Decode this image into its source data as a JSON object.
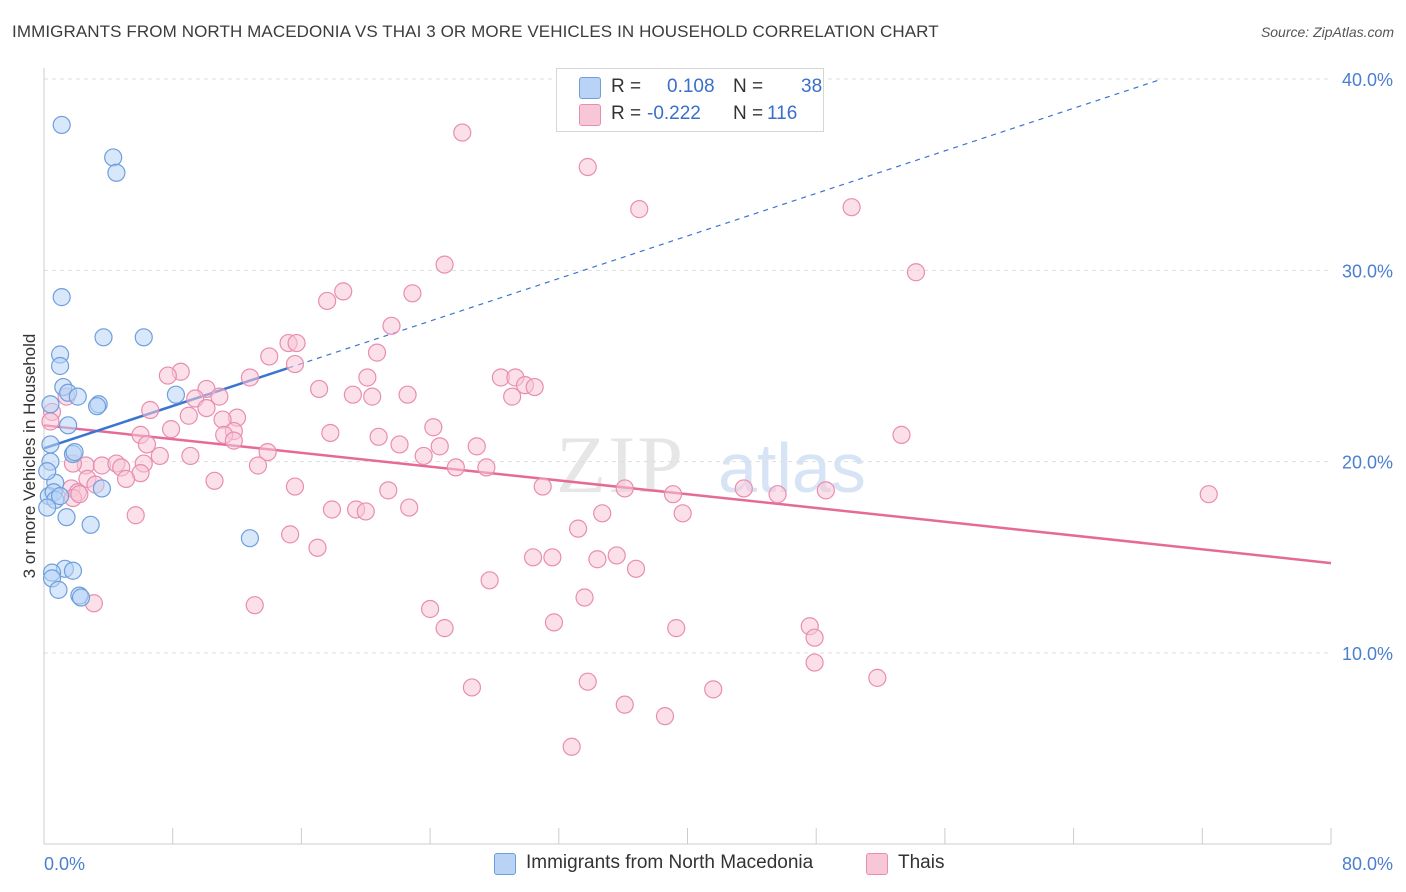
{
  "header": {
    "title": "IMMIGRANTS FROM NORTH MACEDONIA VS THAI 3 OR MORE VEHICLES IN HOUSEHOLD CORRELATION CHART",
    "source": "Source: ZipAtlas.com"
  },
  "legend": {
    "series1": {
      "r_label": "R =",
      "r_value": "0.108",
      "n_label": "N =",
      "n_value": "38"
    },
    "series2": {
      "r_label": "R =",
      "r_value": "-0.222",
      "n_label": "N =",
      "n_value": "116"
    }
  },
  "watermark": {
    "zip": "ZIP",
    "atlas": "atlas"
  },
  "colors": {
    "blue_fill": "#b8d3f5",
    "blue_stroke": "#6e9fdc",
    "blue_line": "#3a76cf",
    "pink_fill": "#f8c7d7",
    "pink_stroke": "#e98db0",
    "pink_line": "#e56a97",
    "tick_label": "#4a7fd0",
    "grid": "#dedede"
  },
  "chart_data": {
    "type": "scatter",
    "title": "IMMIGRANTS FROM NORTH MACEDONIA VS THAI 3 OR MORE VEHICLES IN HOUSEHOLD CORRELATION CHART",
    "xlabel": "",
    "ylabel": "3 or more Vehicles in Household",
    "xlim": [
      0,
      80
    ],
    "ylim": [
      0,
      42
    ],
    "x_tick_labels": [
      "0.0%",
      "80.0%"
    ],
    "y_ticks": [
      10,
      20,
      30,
      40
    ],
    "y_tick_labels": [
      "10.0%",
      "20.0%",
      "30.0%",
      "40.0%"
    ],
    "series": [
      {
        "name": "Immigrants from North Macedonia",
        "R": 0.108,
        "N": 38,
        "trend": {
          "x": [
            0,
            15.2
          ],
          "y": [
            20.7,
            24.9
          ]
        },
        "trend_extension": {
          "x": [
            15.2,
            69.5
          ],
          "y": [
            24.9,
            40.0
          ]
        },
        "points": [
          [
            1.1,
            37.6
          ],
          [
            4.3,
            35.9
          ],
          [
            4.5,
            35.1
          ],
          [
            1.1,
            28.6
          ],
          [
            3.7,
            26.5
          ],
          [
            6.2,
            26.5
          ],
          [
            1.0,
            25.6
          ],
          [
            1.0,
            25.0
          ],
          [
            1.2,
            23.9
          ],
          [
            1.5,
            23.6
          ],
          [
            2.1,
            23.4
          ],
          [
            3.4,
            23.0
          ],
          [
            3.3,
            22.9
          ],
          [
            8.2,
            23.5
          ],
          [
            0.4,
            23.0
          ],
          [
            1.5,
            21.9
          ],
          [
            0.4,
            20.9
          ],
          [
            1.8,
            20.4
          ],
          [
            1.9,
            20.5
          ],
          [
            0.4,
            20.0
          ],
          [
            0.7,
            18.9
          ],
          [
            0.3,
            18.2
          ],
          [
            0.6,
            18.4
          ],
          [
            0.7,
            18.0
          ],
          [
            3.6,
            18.6
          ],
          [
            1.0,
            18.2
          ],
          [
            0.2,
            17.6
          ],
          [
            1.4,
            17.1
          ],
          [
            2.9,
            16.7
          ],
          [
            12.8,
            16.0
          ],
          [
            1.3,
            14.4
          ],
          [
            1.8,
            14.3
          ],
          [
            0.5,
            14.2
          ],
          [
            0.5,
            13.9
          ],
          [
            0.9,
            13.3
          ],
          [
            2.2,
            13.0
          ],
          [
            2.3,
            12.9
          ],
          [
            0.2,
            19.5
          ]
        ]
      },
      {
        "name": "Thais",
        "R": -0.222,
        "N": 116,
        "trend": {
          "x": [
            0,
            80
          ],
          "y": [
            21.9,
            14.7
          ]
        },
        "points": [
          [
            26.0,
            37.2
          ],
          [
            33.8,
            35.4
          ],
          [
            37.0,
            33.2
          ],
          [
            50.2,
            33.3
          ],
          [
            24.9,
            30.3
          ],
          [
            54.2,
            29.9
          ],
          [
            18.6,
            28.9
          ],
          [
            17.6,
            28.4
          ],
          [
            22.9,
            28.8
          ],
          [
            21.6,
            27.1
          ],
          [
            15.2,
            26.2
          ],
          [
            15.7,
            26.2
          ],
          [
            20.7,
            25.7
          ],
          [
            14.0,
            25.5
          ],
          [
            15.6,
            25.1
          ],
          [
            8.5,
            24.7
          ],
          [
            7.7,
            24.5
          ],
          [
            12.8,
            24.4
          ],
          [
            20.1,
            24.4
          ],
          [
            28.4,
            24.4
          ],
          [
            29.3,
            24.4
          ],
          [
            29.9,
            24.0
          ],
          [
            30.5,
            23.9
          ],
          [
            10.1,
            23.8
          ],
          [
            17.1,
            23.8
          ],
          [
            19.2,
            23.5
          ],
          [
            20.4,
            23.4
          ],
          [
            22.6,
            23.5
          ],
          [
            29.1,
            23.4
          ],
          [
            9.4,
            23.3
          ],
          [
            10.9,
            23.4
          ],
          [
            1.4,
            23.4
          ],
          [
            6.6,
            22.7
          ],
          [
            10.1,
            22.8
          ],
          [
            9.0,
            22.4
          ],
          [
            12.0,
            22.3
          ],
          [
            11.1,
            22.2
          ],
          [
            7.9,
            21.7
          ],
          [
            24.2,
            21.8
          ],
          [
            11.8,
            21.6
          ],
          [
            17.8,
            21.5
          ],
          [
            11.2,
            21.4
          ],
          [
            20.8,
            21.3
          ],
          [
            6.0,
            21.4
          ],
          [
            11.8,
            21.1
          ],
          [
            6.4,
            20.9
          ],
          [
            22.1,
            20.9
          ],
          [
            24.6,
            20.8
          ],
          [
            26.9,
            20.8
          ],
          [
            53.3,
            21.4
          ],
          [
            7.2,
            20.3
          ],
          [
            9.1,
            20.3
          ],
          [
            13.9,
            20.5
          ],
          [
            23.6,
            20.3
          ],
          [
            2.6,
            19.8
          ],
          [
            3.6,
            19.8
          ],
          [
            6.2,
            19.9
          ],
          [
            4.5,
            19.9
          ],
          [
            4.8,
            19.7
          ],
          [
            6.0,
            19.4
          ],
          [
            13.3,
            19.8
          ],
          [
            25.6,
            19.7
          ],
          [
            27.5,
            19.7
          ],
          [
            2.7,
            19.1
          ],
          [
            3.2,
            18.8
          ],
          [
            5.1,
            19.1
          ],
          [
            1.7,
            18.6
          ],
          [
            2.1,
            18.4
          ],
          [
            1.8,
            18.1
          ],
          [
            10.6,
            19.0
          ],
          [
            15.6,
            18.7
          ],
          [
            21.4,
            18.5
          ],
          [
            31.0,
            18.7
          ],
          [
            36.1,
            18.6
          ],
          [
            39.1,
            18.3
          ],
          [
            43.5,
            18.6
          ],
          [
            45.6,
            18.3
          ],
          [
            48.6,
            18.5
          ],
          [
            72.4,
            18.3
          ],
          [
            17.9,
            17.5
          ],
          [
            19.4,
            17.5
          ],
          [
            20.0,
            17.4
          ],
          [
            22.7,
            17.6
          ],
          [
            5.7,
            17.2
          ],
          [
            34.7,
            17.3
          ],
          [
            39.7,
            17.3
          ],
          [
            33.2,
            16.5
          ],
          [
            15.3,
            16.2
          ],
          [
            17.0,
            15.5
          ],
          [
            30.4,
            15.0
          ],
          [
            31.6,
            15.0
          ],
          [
            34.4,
            14.9
          ],
          [
            35.6,
            15.1
          ],
          [
            36.8,
            14.4
          ],
          [
            27.7,
            13.8
          ],
          [
            33.6,
            12.9
          ],
          [
            13.1,
            12.5
          ],
          [
            24.0,
            12.3
          ],
          [
            3.1,
            12.6
          ],
          [
            31.7,
            11.6
          ],
          [
            24.9,
            11.3
          ],
          [
            39.3,
            11.3
          ],
          [
            47.6,
            11.4
          ],
          [
            47.9,
            10.8
          ],
          [
            47.9,
            9.5
          ],
          [
            51.8,
            8.7
          ],
          [
            26.6,
            8.2
          ],
          [
            33.8,
            8.5
          ],
          [
            41.6,
            8.1
          ],
          [
            36.1,
            7.3
          ],
          [
            38.6,
            6.7
          ],
          [
            32.8,
            5.1
          ],
          [
            1.8,
            19.9
          ],
          [
            2.2,
            18.3
          ],
          [
            0.5,
            22.6
          ],
          [
            0.4,
            22.1
          ]
        ]
      }
    ]
  },
  "bottom_legend": {
    "items": [
      "Immigrants from North Macedonia",
      "Thais"
    ]
  }
}
